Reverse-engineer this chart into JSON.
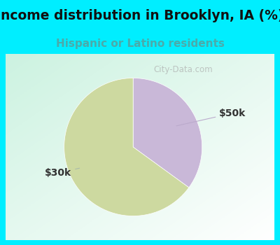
{
  "title": "Income distribution in Brooklyn, IA (%)",
  "subtitle": "Hispanic or Latino residents",
  "slices": [
    0.35,
    0.65
  ],
  "colors": [
    "#c9b8d8",
    "#cdd9a0"
  ],
  "slice_labels": [
    "$50k",
    "$30k"
  ],
  "watermark": "City-Data.com",
  "title_fontsize": 13.5,
  "subtitle_fontsize": 11,
  "subtitle_color": "#4aabab",
  "title_color": "#111111",
  "bg_color": "#00eeff",
  "chart_margin_color": "#00eeff",
  "label_fontsize": 10,
  "label_color": "#333333"
}
